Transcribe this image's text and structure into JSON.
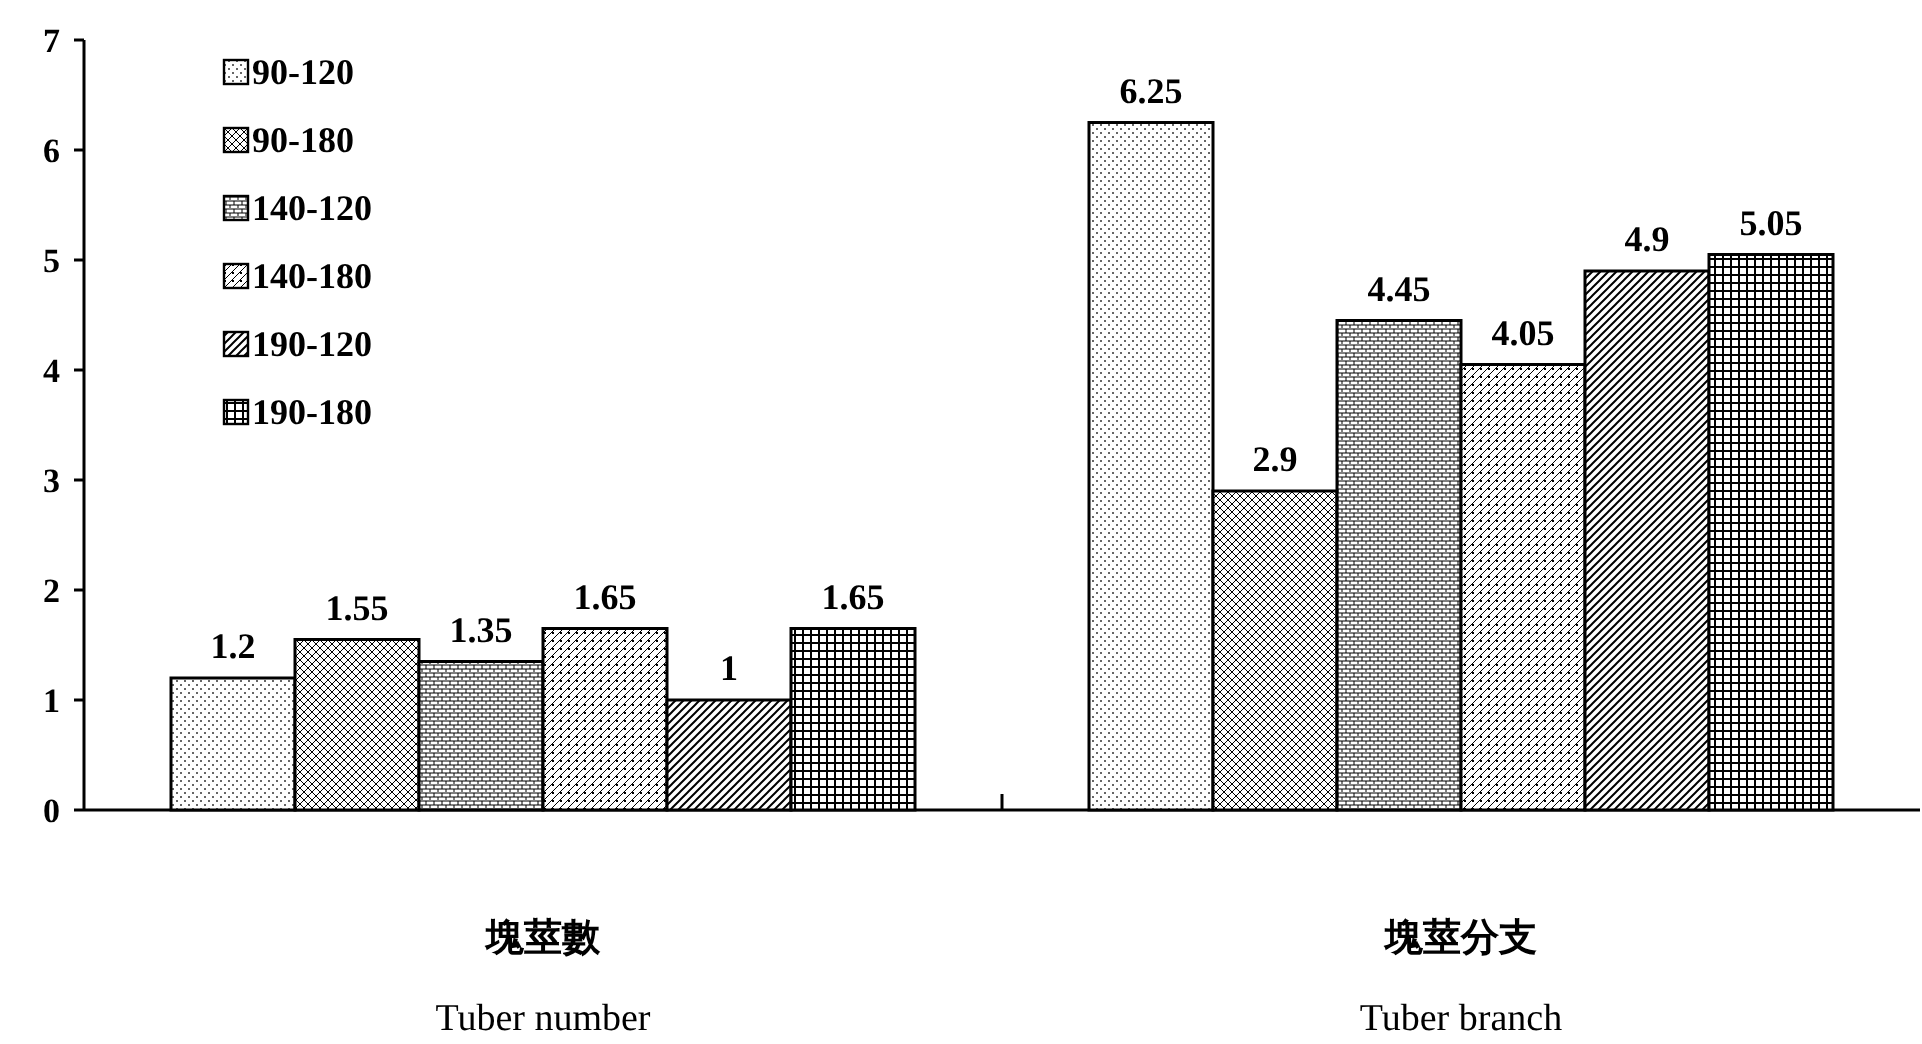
{
  "chart_data": {
    "type": "bar",
    "categories": [
      "塊莖數\nTuber number",
      "塊莖分支\nTuber branch"
    ],
    "series": [
      {
        "name": "90-120",
        "color": "#000000",
        "values": [
          1.2,
          6.25
        ]
      },
      {
        "name": "90-180",
        "color": "#000000",
        "values": [
          1.55,
          2.9
        ]
      },
      {
        "name": "140-120",
        "color": "#000000",
        "values": [
          1.35,
          4.45
        ]
      },
      {
        "name": "140-180",
        "color": "#000000",
        "values": [
          1.65,
          4.05
        ]
      },
      {
        "name": "190-120",
        "color": "#000000",
        "values": [
          1,
          4.9
        ]
      },
      {
        "name": "190-180",
        "color": "#000000",
        "values": [
          1.65,
          5.05
        ]
      }
    ],
    "ylim": [
      0,
      7
    ],
    "yticks": [
      0,
      1,
      2,
      3,
      4,
      5,
      6,
      7
    ],
    "data_labels": true,
    "legend": "top left"
  }
}
